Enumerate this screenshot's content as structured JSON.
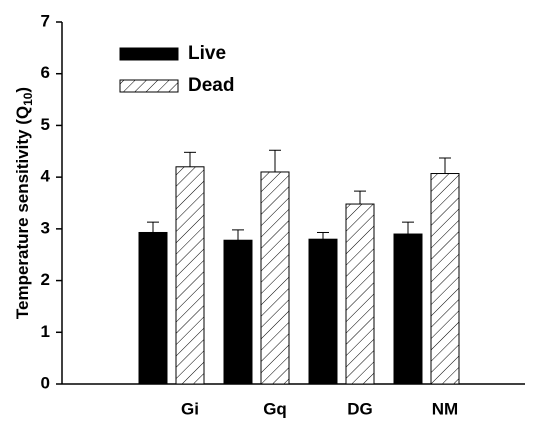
{
  "chart_data": {
    "type": "bar",
    "y_label": {
      "text": "Temperature sensitivity (Q",
      "subscript": "10",
      "close": ")"
    },
    "categories": [
      "Gi",
      "Gq",
      "DG",
      "NM"
    ],
    "series": [
      {
        "name": "Live",
        "color": "#000000",
        "pattern": "solid",
        "values": [
          2.93,
          2.78,
          2.8,
          2.9
        ],
        "errors": [
          0.2,
          0.2,
          0.13,
          0.23
        ]
      },
      {
        "name": "Dead",
        "color": "#ffffff",
        "pattern": "hatch",
        "values": [
          4.2,
          4.1,
          3.48,
          4.07
        ],
        "errors": [
          0.28,
          0.42,
          0.25,
          0.3
        ]
      }
    ],
    "ylim": [
      0,
      7
    ],
    "yticks": [
      0,
      1,
      2,
      3,
      4,
      5,
      6,
      7
    ],
    "legend": "upper left"
  }
}
